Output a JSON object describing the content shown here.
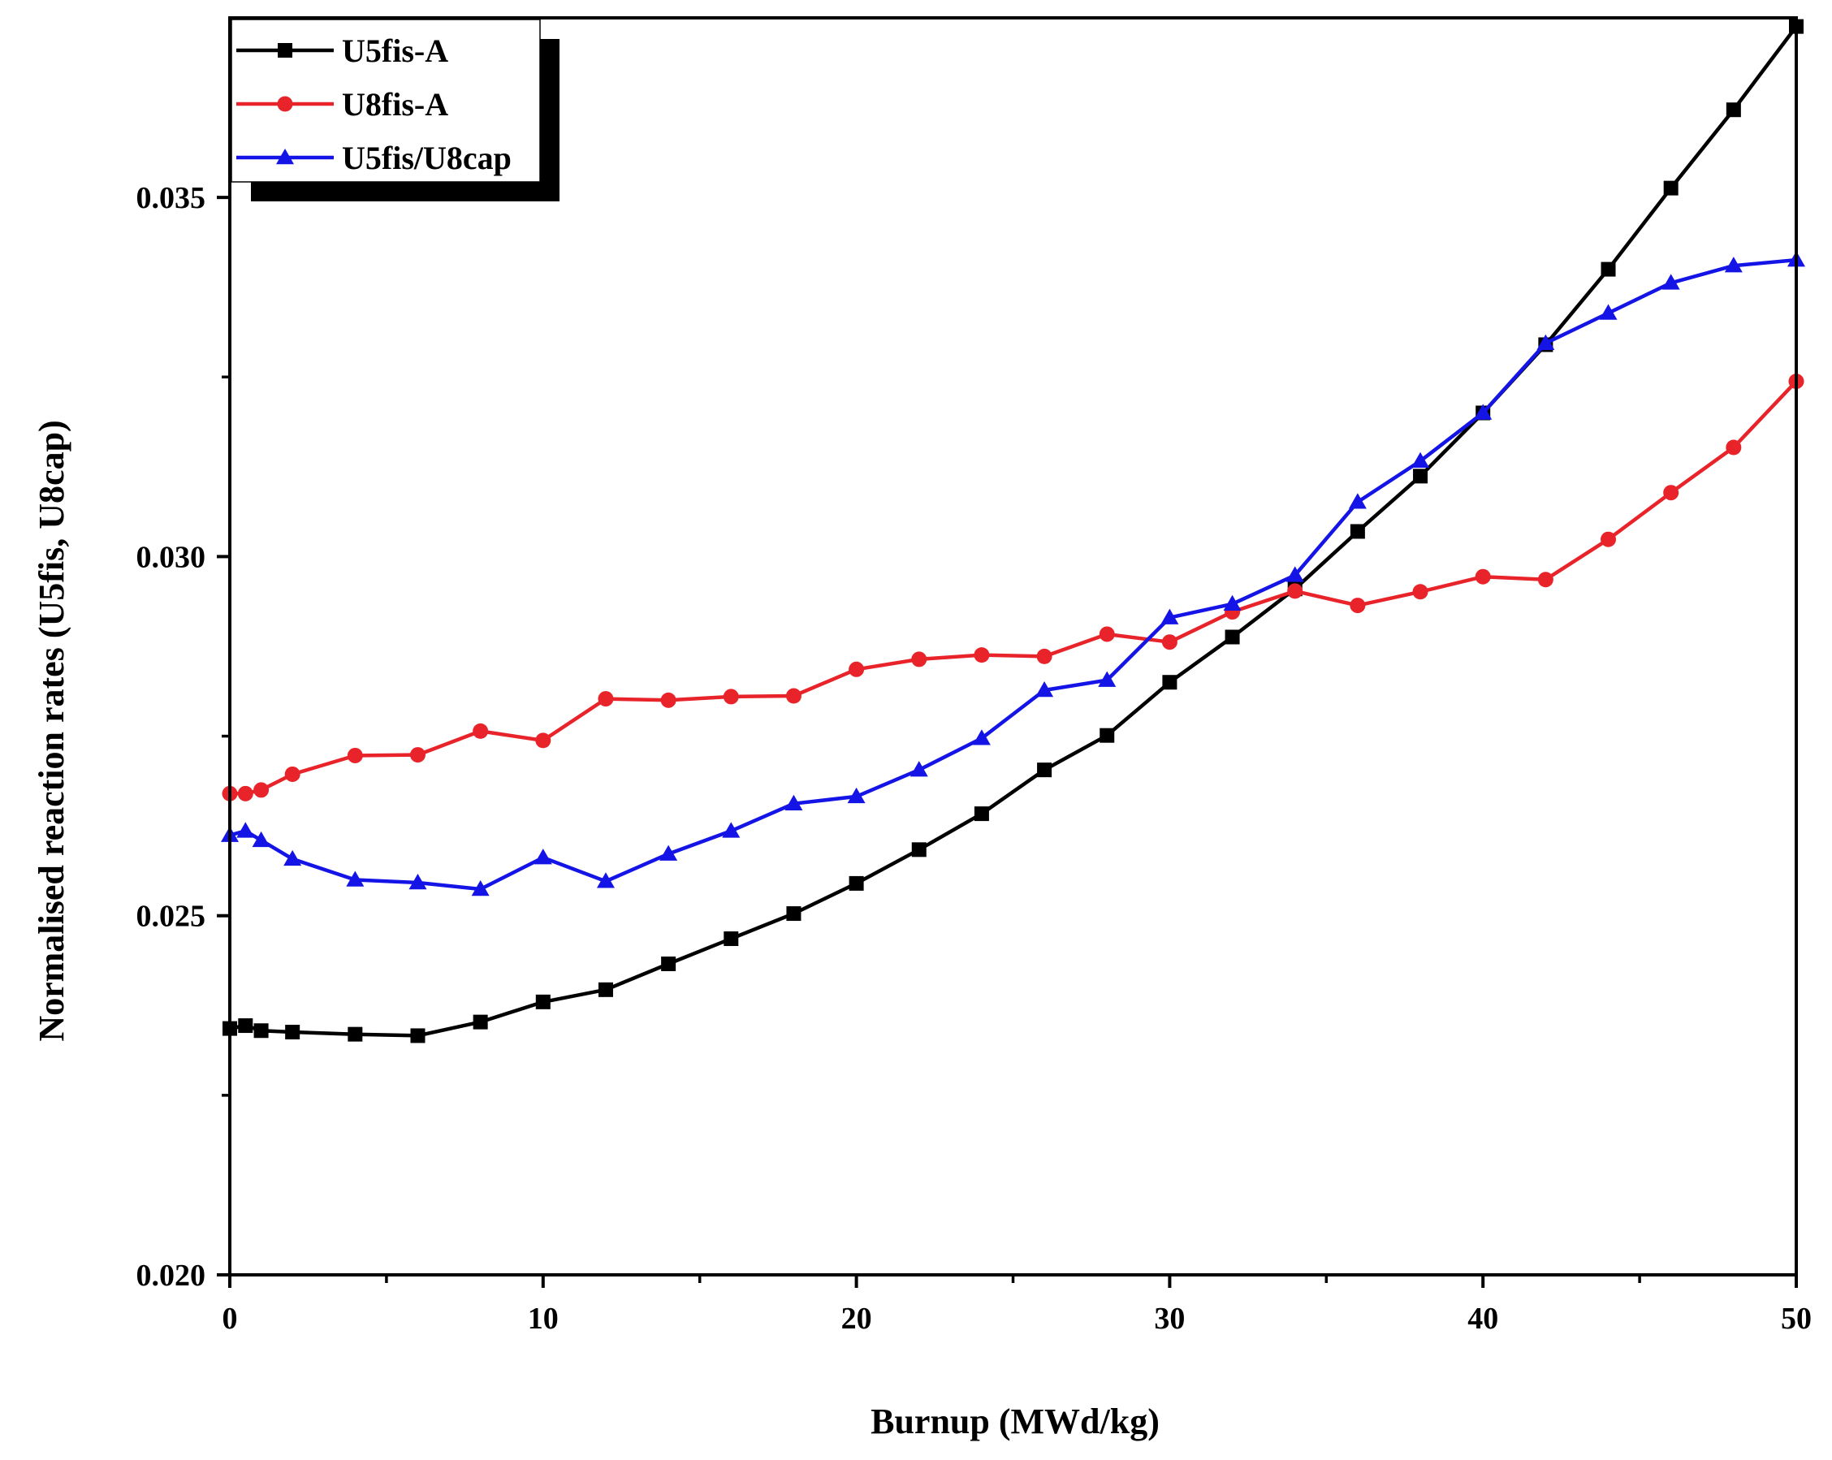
{
  "chart_data": {
    "type": "line",
    "xlabel": "Burnup (MWd/kg)",
    "ylabel": "Normalised reaction rates (U5fis, U8cap)",
    "xlim": [
      0,
      50
    ],
    "ylim": [
      0.02,
      0.0375
    ],
    "xticks": [
      0,
      10,
      20,
      30,
      40,
      50
    ],
    "xtick_labels": [
      "0",
      "10",
      "20",
      "30",
      "40",
      "50"
    ],
    "yticks": [
      0.02,
      0.025,
      0.03,
      0.035
    ],
    "ytick_labels": [
      "0.020",
      "0.025",
      "0.030",
      "0.035"
    ],
    "grid": false,
    "legend_position": "top-left",
    "series": [
      {
        "name": "U5fis-A",
        "color": "#000000",
        "marker": "square",
        "x": [
          0,
          0.5,
          1,
          2,
          4,
          6,
          8,
          10,
          12,
          14,
          16,
          18,
          20,
          22,
          24,
          26,
          28,
          30,
          32,
          34,
          36,
          38,
          40,
          42,
          44,
          46,
          48,
          50
        ],
        "y": [
          0.02343,
          0.02347,
          0.0234,
          0.02338,
          0.02335,
          0.02333,
          0.02352,
          0.0238,
          0.02397,
          0.02433,
          0.02468,
          0.02503,
          0.02545,
          0.02592,
          0.02642,
          0.02703,
          0.02751,
          0.02825,
          0.02888,
          0.02955,
          0.03035,
          0.03112,
          0.032,
          0.03295,
          0.034,
          0.03513,
          0.03622,
          0.03738
        ]
      },
      {
        "name": "U8fis-A",
        "color": "#e8242a",
        "marker": "circle",
        "x": [
          0,
          0.5,
          1,
          2,
          4,
          6,
          8,
          10,
          12,
          14,
          16,
          18,
          20,
          22,
          24,
          26,
          28,
          30,
          32,
          34,
          36,
          38,
          40,
          42,
          44,
          46,
          48,
          50
        ],
        "y": [
          0.0267,
          0.0267,
          0.02675,
          0.02697,
          0.02723,
          0.02724,
          0.02757,
          0.02744,
          0.02802,
          0.028,
          0.02805,
          0.02806,
          0.02843,
          0.02857,
          0.02863,
          0.02861,
          0.02892,
          0.02881,
          0.02923,
          0.02952,
          0.02932,
          0.02951,
          0.02972,
          0.02968,
          0.03024,
          0.03089,
          0.03152,
          0.03244
        ]
      },
      {
        "name": "U5fis/U8cap",
        "color": "#1414e6",
        "marker": "triangle",
        "x": [
          0,
          0.5,
          1,
          2,
          4,
          6,
          8,
          10,
          12,
          14,
          16,
          18,
          20,
          22,
          24,
          26,
          28,
          30,
          32,
          34,
          36,
          38,
          40,
          42,
          44,
          46,
          48,
          50
        ],
        "y": [
          0.02612,
          0.02618,
          0.02605,
          0.02579,
          0.0255,
          0.02546,
          0.02537,
          0.02581,
          0.02548,
          0.02586,
          0.02618,
          0.02656,
          0.02666,
          0.02703,
          0.02747,
          0.02814,
          0.02828,
          0.02915,
          0.02934,
          0.02974,
          0.03076,
          0.03133,
          0.032,
          0.03297,
          0.03339,
          0.03381,
          0.03405,
          0.03413
        ]
      }
    ]
  }
}
